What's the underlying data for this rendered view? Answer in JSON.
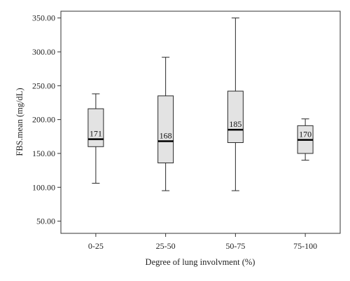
{
  "chart_data": {
    "type": "box",
    "xlabel": "Degree of lung involvment (%)",
    "ylabel": "FBS.mean (mg/dL)",
    "ylim": [
      32,
      360
    ],
    "yticks": [
      "50.00",
      "100.00",
      "150.00",
      "200.00",
      "250.00",
      "300.00",
      "350.00"
    ],
    "ytick_values": [
      50,
      100,
      150,
      200,
      250,
      300,
      350
    ],
    "categories": [
      "0-25",
      "25-50",
      "50-75",
      "75-100"
    ],
    "boxes": [
      {
        "category": "0-25",
        "whisker_low": 106,
        "q1": 160,
        "median": 171,
        "q3": 216,
        "whisker_high": 238,
        "median_label": "171"
      },
      {
        "category": "25-50",
        "whisker_low": 95,
        "q1": 136,
        "median": 168,
        "q3": 235,
        "whisker_high": 292,
        "median_label": "168"
      },
      {
        "category": "50-75",
        "whisker_low": 95,
        "q1": 166,
        "median": 185,
        "q3": 242,
        "whisker_high": 350,
        "median_label": "185"
      },
      {
        "category": "75-100",
        "whisker_low": 140,
        "q1": 150,
        "median": 170,
        "q3": 191,
        "whisker_high": 201,
        "median_label": "170"
      }
    ],
    "grid": false,
    "legend": "none",
    "colors": {
      "box_fill": "#e3e3e3",
      "stroke": "#2a2a2a",
      "median": "#000000",
      "frame": "#333333"
    }
  }
}
